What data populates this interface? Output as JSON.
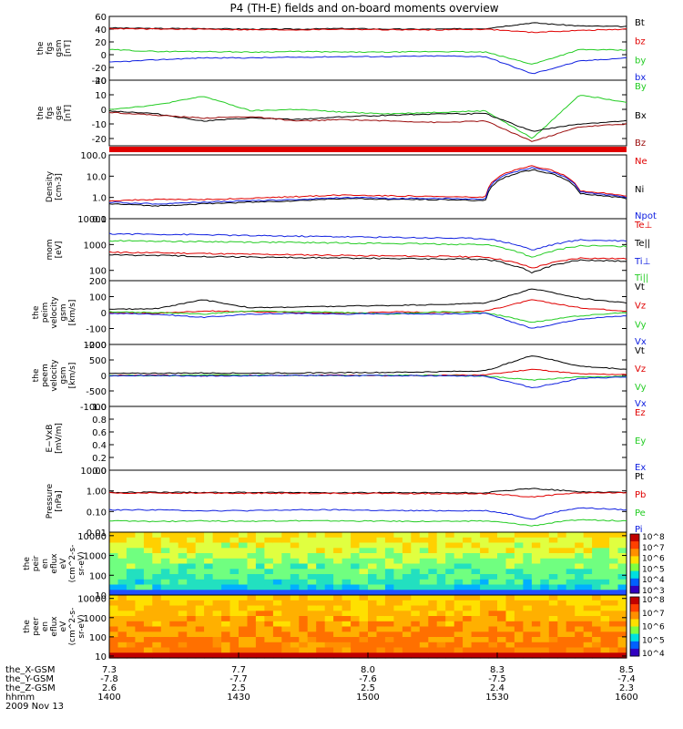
{
  "title": "P4 (TH-E) fields and on-board moments overview",
  "colors": {
    "black": "#000000",
    "red": "#e00000",
    "green": "#22cc22",
    "blue": "#1020e0",
    "darkred": "#9a0a0a"
  },
  "chart_data": [
    {
      "type": "line",
      "id": "p1",
      "ylabel": [
        "the",
        "fgs",
        "gsm",
        "[nT]"
      ],
      "ylim": [
        -40,
        60
      ],
      "ticks": [
        "60",
        "40",
        "20",
        "0",
        "-20",
        "-40"
      ],
      "tickvals": [
        60,
        40,
        20,
        0,
        -20,
        -40
      ],
      "series": [
        {
          "name": "Bt",
          "color": "black",
          "values": [
            42,
            41,
            41,
            40,
            40,
            41,
            40,
            40,
            41,
            50,
            45,
            44
          ]
        },
        {
          "name": "bz",
          "color": "red",
          "values": [
            41,
            40,
            40,
            39,
            39,
            40,
            39,
            39,
            40,
            35,
            38,
            40
          ]
        },
        {
          "name": "by",
          "color": "green",
          "values": [
            8,
            5,
            5,
            4,
            5,
            4,
            4,
            5,
            4,
            -15,
            8,
            7
          ]
        },
        {
          "name": "bx",
          "color": "blue",
          "values": [
            -12,
            -8,
            -5,
            -5,
            -4,
            -3,
            -3,
            -2,
            -3,
            -30,
            -10,
            -5
          ]
        }
      ]
    },
    {
      "type": "line",
      "id": "p2",
      "ylabel": [
        "the",
        "fgs",
        "gse",
        "[nT]"
      ],
      "ylim": [
        -25,
        20
      ],
      "ticks": [
        "20",
        "10",
        "0",
        "-10",
        "-20"
      ],
      "tickvals": [
        20,
        10,
        0,
        -10,
        -20
      ],
      "series": [
        {
          "name": "By",
          "color": "green",
          "values": [
            0,
            3,
            9,
            -1,
            0,
            -2,
            -3,
            -2,
            -1,
            -20,
            10,
            5
          ]
        },
        {
          "name": "Bx",
          "color": "black",
          "values": [
            -1,
            -3,
            -8,
            -6,
            -7,
            -5,
            -4,
            -3,
            -3,
            -15,
            -10,
            -8
          ]
        },
        {
          "name": "Bz",
          "color": "darkred",
          "values": [
            -2,
            -4,
            -6,
            -5,
            -8,
            -7,
            -8,
            -9,
            -8,
            -22,
            -12,
            -10
          ]
        }
      ]
    },
    {
      "type": "line",
      "id": "p3",
      "log": true,
      "ylabel": [
        "Density",
        "[cm-3]"
      ],
      "ylim": [
        0.1,
        100
      ],
      "ticks": [
        "100.0",
        "10.0",
        "1.0",
        "0.1"
      ],
      "tickvals": [
        100,
        10,
        1,
        0.1
      ],
      "series": [
        {
          "name": "Ne",
          "color": "red",
          "values": [
            0.7,
            0.8,
            0.8,
            0.9,
            1.1,
            1.3,
            1.2,
            1.1,
            1.0,
            30,
            2.0,
            1.2
          ]
        },
        {
          "name": "Ni",
          "color": "black",
          "values": [
            0.5,
            0.4,
            0.5,
            0.6,
            0.7,
            0.9,
            0.8,
            0.8,
            0.7,
            20,
            1.5,
            0.9
          ]
        },
        {
          "name": "Npot",
          "color": "blue",
          "values": [
            0.6,
            0.5,
            0.6,
            0.7,
            0.8,
            1.0,
            0.9,
            0.9,
            0.8,
            25,
            1.8,
            1.0
          ]
        }
      ]
    },
    {
      "type": "line",
      "id": "p4",
      "log": true,
      "ylabel": [
        "mom",
        "[eV]"
      ],
      "ylim": [
        40,
        10000
      ],
      "ticks": [
        "10000",
        "1000",
        "100"
      ],
      "tickvals": [
        10000,
        1000,
        100
      ],
      "series": [
        {
          "name": "Te⊥",
          "color": "red",
          "values": [
            500,
            480,
            450,
            420,
            400,
            380,
            360,
            350,
            330,
            120,
            300,
            280
          ]
        },
        {
          "name": "Te||",
          "color": "black",
          "values": [
            400,
            380,
            350,
            330,
            310,
            300,
            290,
            280,
            270,
            80,
            250,
            230
          ]
        },
        {
          "name": "Ti⊥",
          "color": "blue",
          "values": [
            2600,
            2500,
            2400,
            2200,
            2100,
            2000,
            1900,
            1800,
            1700,
            600,
            1500,
            1400
          ]
        },
        {
          "name": "Ti||",
          "color": "green",
          "values": [
            1400,
            1350,
            1300,
            1250,
            1200,
            1150,
            1100,
            1050,
            1000,
            300,
            900,
            850
          ]
        }
      ]
    },
    {
      "type": "line",
      "id": "p5",
      "ylabel": [
        "the",
        "peim",
        "velocity",
        "gsm",
        "[km/s]"
      ],
      "ylim": [
        -200,
        200
      ],
      "ticks": [
        "200",
        "100",
        "0",
        "-100",
        "-200"
      ],
      "tickvals": [
        200,
        100,
        0,
        -100,
        -200
      ],
      "series": [
        {
          "name": "Vt",
          "color": "black",
          "values": [
            20,
            25,
            80,
            30,
            35,
            40,
            45,
            50,
            60,
            150,
            90,
            60
          ]
        },
        {
          "name": "Vz",
          "color": "red",
          "values": [
            0,
            -5,
            10,
            5,
            0,
            -5,
            5,
            0,
            10,
            80,
            30,
            10
          ]
        },
        {
          "name": "Vy",
          "color": "green",
          "values": [
            5,
            0,
            -10,
            10,
            5,
            0,
            -10,
            5,
            0,
            -60,
            -20,
            0
          ]
        },
        {
          "name": "Vx",
          "color": "blue",
          "values": [
            -5,
            -10,
            -30,
            -10,
            -5,
            -10,
            -5,
            -10,
            -5,
            -100,
            -40,
            -20
          ]
        }
      ]
    },
    {
      "type": "line",
      "id": "p6",
      "ylabel": [
        "the",
        "peem",
        "velocity",
        "gsm",
        "[km/s]"
      ],
      "ylim": [
        -1000,
        1000
      ],
      "ticks": [
        "1000",
        "500",
        "0",
        "-500",
        "-1000"
      ],
      "tickvals": [
        1000,
        500,
        0,
        -500,
        -1000
      ],
      "series": [
        {
          "name": "Vt",
          "color": "black",
          "values": [
            60,
            70,
            80,
            70,
            80,
            90,
            100,
            120,
            150,
            650,
            300,
            200
          ]
        },
        {
          "name": "Vz",
          "color": "red",
          "values": [
            0,
            10,
            -10,
            5,
            0,
            10,
            -10,
            0,
            20,
            200,
            50,
            30
          ]
        },
        {
          "name": "Vy",
          "color": "green",
          "values": [
            0,
            -10,
            10,
            0,
            5,
            -5,
            10,
            0,
            -20,
            -150,
            -50,
            -30
          ]
        },
        {
          "name": "Vx",
          "color": "blue",
          "values": [
            -10,
            0,
            -20,
            -10,
            0,
            -10,
            -5,
            -10,
            -20,
            -400,
            -100,
            -50
          ]
        }
      ]
    },
    {
      "type": "line",
      "id": "p7",
      "ylabel": [
        "E−VxB",
        "[mV/m]"
      ],
      "ylim": [
        0,
        1
      ],
      "ticks": [
        "1.0",
        "0.8",
        "0.6",
        "0.4",
        "0.2",
        "0.0"
      ],
      "tickvals": [
        1,
        0.8,
        0.6,
        0.4,
        0.2,
        0
      ],
      "series": [
        {
          "name": "Ez",
          "color": "red",
          "values": []
        },
        {
          "name": "Ey",
          "color": "green",
          "values": []
        },
        {
          "name": "Ex",
          "color": "blue",
          "values": []
        }
      ]
    },
    {
      "type": "line",
      "id": "p8",
      "log": true,
      "ylabel": [
        "Pressure",
        "[nPa]"
      ],
      "ylim": [
        0.01,
        10
      ],
      "ticks": [
        "10.00",
        "1.00",
        "0.10",
        "0.01"
      ],
      "tickvals": [
        10,
        1,
        0.1,
        0.01
      ],
      "series": [
        {
          "name": "Pt",
          "color": "black",
          "values": [
            0.85,
            0.85,
            0.84,
            0.83,
            0.82,
            0.82,
            0.81,
            0.8,
            0.8,
            1.3,
            0.9,
            0.85
          ]
        },
        {
          "name": "Pb",
          "color": "red",
          "values": [
            0.8,
            0.79,
            0.78,
            0.77,
            0.76,
            0.76,
            0.75,
            0.74,
            0.74,
            0.5,
            0.8,
            0.8
          ]
        },
        {
          "name": "Pe",
          "color": "green",
          "values": [
            0.035,
            0.033,
            0.035,
            0.034,
            0.036,
            0.035,
            0.034,
            0.033,
            0.035,
            0.02,
            0.04,
            0.035
          ]
        },
        {
          "name": "Pi",
          "color": "blue",
          "values": [
            0.12,
            0.12,
            0.11,
            0.11,
            0.12,
            0.12,
            0.11,
            0.11,
            0.11,
            0.04,
            0.15,
            0.12
          ]
        }
      ]
    },
    {
      "type": "heatmap",
      "id": "p9",
      "log": true,
      "ylabel": [
        "the",
        "peir",
        "en",
        "eflux",
        "eV",
        "(cm^2-s-",
        "sr-eV)"
      ],
      "ylim": [
        10,
        15000
      ],
      "ticks": [
        "10000",
        "1000",
        "100",
        "10"
      ],
      "tickvals": [
        10000,
        1000,
        100,
        10
      ],
      "colorbar": [
        "10^8",
        "10^7",
        "10^6",
        "10^5",
        "10^4",
        "10^3"
      ]
    },
    {
      "type": "heatmap",
      "id": "p10",
      "log": true,
      "ylabel": [
        "the",
        "peer",
        "en",
        "eflux",
        "eV",
        "(cm^2-s-",
        "sr-eV)"
      ],
      "ylim": [
        8,
        15000
      ],
      "ticks": [
        "10000",
        "1000",
        "100",
        "10"
      ],
      "tickvals": [
        10000,
        1000,
        100,
        10
      ],
      "colorbar": [
        "10^8",
        "10^7",
        "10^6",
        "10^5",
        "10^4"
      ]
    }
  ],
  "xaxis": {
    "ticks": [
      {
        "x": "7.3",
        "y": "-7.8",
        "z": "2.6",
        "hhmm": "1400"
      },
      {
        "x": "7.7",
        "y": "-7.7",
        "z": "2.5",
        "hhmm": "1430"
      },
      {
        "x": "8.0",
        "y": "-7.6",
        "z": "2.5",
        "hhmm": "1500"
      },
      {
        "x": "8.3",
        "y": "-7.5",
        "z": "2.4",
        "hhmm": "1530"
      },
      {
        "x": "8.5",
        "y": "-7.4",
        "z": "2.3",
        "hhmm": "1600"
      }
    ],
    "row_labels": [
      "the_X-GSM",
      "the_Y-GSM",
      "the_Z-GSM",
      "hhmm"
    ],
    "date": "2009 Nov 13"
  }
}
